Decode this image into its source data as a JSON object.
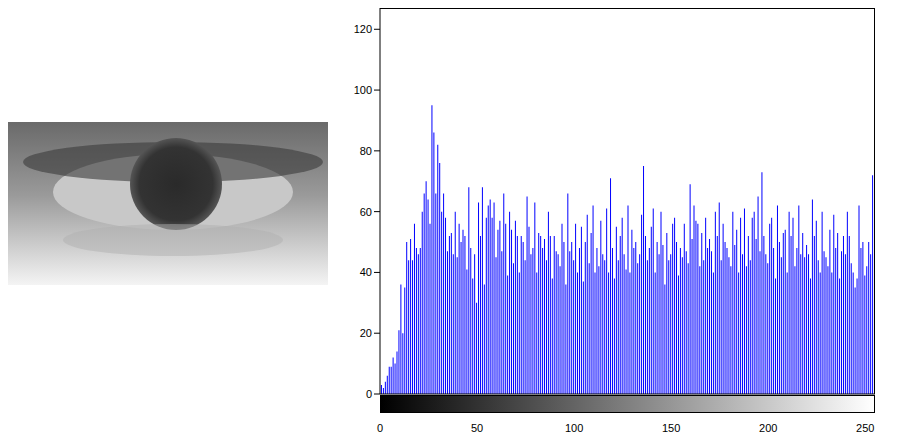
{
  "chart_data": {
    "type": "bar",
    "x": [
      0,
      1,
      2,
      3,
      4,
      5,
      6,
      7,
      8,
      9,
      10,
      11,
      12,
      13,
      14,
      15,
      16,
      17,
      18,
      19,
      20,
      21,
      22,
      23,
      24,
      25,
      26,
      27,
      28,
      29,
      30,
      31,
      32,
      33,
      34,
      35,
      36,
      37,
      38,
      39,
      40,
      41,
      42,
      43,
      44,
      45,
      46,
      47,
      48,
      49,
      50,
      51,
      52,
      53,
      54,
      55,
      56,
      57,
      58,
      59,
      60,
      61,
      62,
      63,
      64,
      65,
      66,
      67,
      68,
      69,
      70,
      71,
      72,
      73,
      74,
      75,
      76,
      77,
      78,
      79,
      80,
      81,
      82,
      83,
      84,
      85,
      86,
      87,
      88,
      89,
      90,
      91,
      92,
      93,
      94,
      95,
      96,
      97,
      98,
      99,
      100,
      101,
      102,
      103,
      104,
      105,
      106,
      107,
      108,
      109,
      110,
      111,
      112,
      113,
      114,
      115,
      116,
      117,
      118,
      119,
      120,
      121,
      122,
      123,
      124,
      125,
      126,
      127,
      128,
      129,
      130,
      131,
      132,
      133,
      134,
      135,
      136,
      137,
      138,
      139,
      140,
      141,
      142,
      143,
      144,
      145,
      146,
      147,
      148,
      149,
      150,
      151,
      152,
      153,
      154,
      155,
      156,
      157,
      158,
      159,
      160,
      161,
      162,
      163,
      164,
      165,
      166,
      167,
      168,
      169,
      170,
      171,
      172,
      173,
      174,
      175,
      176,
      177,
      178,
      179,
      180,
      181,
      182,
      183,
      184,
      185,
      186,
      187,
      188,
      189,
      190,
      191,
      192,
      193,
      194,
      195,
      196,
      197,
      198,
      199,
      200,
      201,
      202,
      203,
      204,
      205,
      206,
      207,
      208,
      209,
      210,
      211,
      212,
      213,
      214,
      215,
      216,
      217,
      218,
      219,
      220,
      221,
      222,
      223,
      224,
      225,
      226,
      227,
      228,
      229,
      230,
      231,
      232,
      233,
      234,
      235,
      236,
      237,
      238,
      239,
      240,
      241,
      242,
      243,
      244,
      245,
      246,
      247,
      248,
      249,
      250,
      251,
      252,
      253,
      254,
      255
    ],
    "values": [
      3,
      3,
      2,
      4,
      6,
      9,
      9,
      12,
      10,
      14,
      21,
      36,
      20,
      35,
      50,
      44,
      51,
      44,
      56,
      48,
      46,
      48,
      60,
      66,
      70,
      64,
      56,
      95,
      86,
      66,
      82,
      76,
      60,
      66,
      58,
      47,
      52,
      53,
      46,
      60,
      45,
      56,
      50,
      54,
      52,
      41,
      68,
      48,
      38,
      46,
      30,
      63,
      52,
      68,
      36,
      58,
      62,
      64,
      58,
      63,
      45,
      54,
      57,
      47,
      66,
      56,
      39,
      60,
      54,
      43,
      57,
      52,
      40,
      52,
      50,
      44,
      65,
      55,
      46,
      48,
      63,
      40,
      53,
      52,
      48,
      51,
      44,
      60,
      52,
      38,
      52,
      47,
      46,
      42,
      56,
      50,
      36,
      66,
      47,
      50,
      44,
      56,
      40,
      48,
      55,
      37,
      50,
      59,
      43,
      53,
      62,
      40,
      48,
      42,
      57,
      46,
      44,
      61,
      40,
      71,
      48,
      38,
      55,
      44,
      52,
      58,
      46,
      41,
      62,
      40,
      54,
      48,
      50,
      43,
      46,
      59,
      75,
      52,
      44,
      48,
      55,
      61,
      40,
      50,
      46,
      60,
      49,
      36,
      53,
      44,
      46,
      56,
      58,
      50,
      39,
      48,
      45,
      56,
      47,
      43,
      69,
      51,
      62,
      57,
      56,
      42,
      53,
      44,
      58,
      48,
      51,
      47,
      40,
      60,
      52,
      63,
      44,
      56,
      50,
      48,
      45,
      42,
      60,
      49,
      54,
      40,
      58,
      46,
      61,
      42,
      52,
      44,
      58,
      60,
      51,
      65,
      47,
      73,
      52,
      46,
      43,
      56,
      58,
      48,
      38,
      62,
      50,
      45,
      53,
      54,
      40,
      60,
      52,
      58,
      42,
      48,
      62,
      46,
      53,
      45,
      49,
      46,
      38,
      64,
      52,
      57,
      44,
      40,
      60,
      47,
      45,
      42,
      54,
      40,
      59,
      48,
      53,
      38,
      47,
      52,
      46,
      60,
      52,
      43,
      40,
      35,
      38,
      62,
      48,
      50,
      39,
      42,
      50,
      46,
      72,
      44
    ],
    "color": "#0000ff",
    "xlim": [
      0,
      255
    ],
    "xticks": [
      0,
      50,
      100,
      150,
      200,
      250
    ],
    "ylim": [
      0,
      127
    ],
    "yticks": [
      0,
      20,
      40,
      60,
      80,
      100,
      120
    ],
    "grid": false
  }
}
